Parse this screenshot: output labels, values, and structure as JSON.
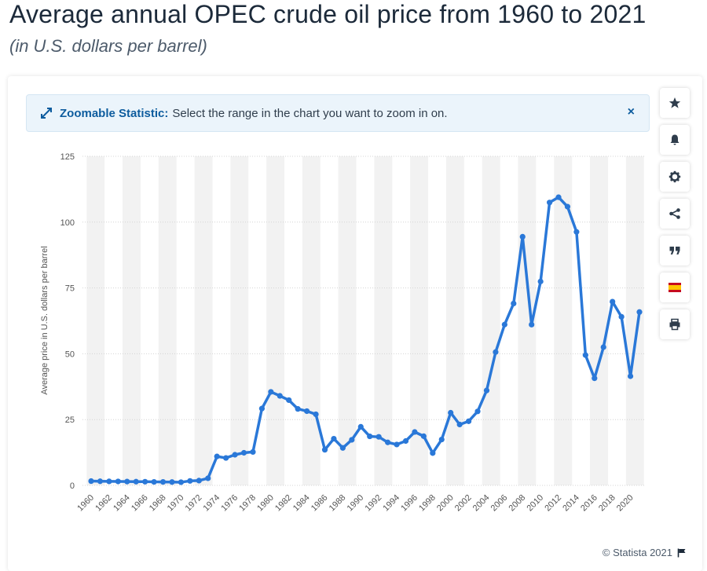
{
  "header": {
    "title": "Average annual OPEC crude oil price from 1960 to 2021",
    "subtitle": "(in U.S. dollars per barrel)"
  },
  "zoom_banner": {
    "label": "Zoomable Statistic:",
    "text": "Select the range in the chart you want to zoom in on.",
    "close_symbol": "×"
  },
  "sidebar": {
    "buttons": [
      "star-icon",
      "bell-icon",
      "gear-icon",
      "share-icon",
      "quote-icon",
      "spain-flag-icon",
      "print-icon"
    ]
  },
  "footer": {
    "copyright": "© Statista 2021"
  },
  "colors": {
    "line": "#2a78d8",
    "band": "#f2f2f2",
    "accent": "#0d5c9e"
  },
  "chart_data": {
    "type": "line",
    "title": "Average annual OPEC crude oil price from 1960 to 2021",
    "ylabel": "Average price in U.S. dollars per barrel",
    "xlabel": "",
    "ylim": [
      0,
      125
    ],
    "yticks": [
      0,
      25,
      50,
      75,
      100,
      125
    ],
    "xtick_labels": [
      "1960",
      "1962",
      "1964",
      "1966",
      "1968",
      "1970",
      "1972",
      "1974",
      "1976",
      "1978",
      "1980",
      "1982",
      "1984",
      "1986",
      "1988",
      "1990",
      "1992",
      "1994",
      "1996",
      "1998",
      "2000",
      "2002",
      "2004",
      "2006",
      "2008",
      "2010",
      "2012",
      "2014",
      "2016",
      "2018",
      "2020"
    ],
    "grid": true,
    "series": [
      {
        "name": "OPEC crude oil price",
        "x": [
          1960,
          1961,
          1962,
          1963,
          1964,
          1965,
          1966,
          1967,
          1968,
          1969,
          1970,
          1971,
          1972,
          1973,
          1974,
          1975,
          1976,
          1977,
          1978,
          1979,
          1980,
          1981,
          1982,
          1983,
          1984,
          1985,
          1986,
          1987,
          1988,
          1989,
          1990,
          1991,
          1992,
          1993,
          1994,
          1995,
          1996,
          1997,
          1998,
          1999,
          2000,
          2001,
          2002,
          2003,
          2004,
          2005,
          2006,
          2007,
          2008,
          2009,
          2010,
          2011,
          2012,
          2013,
          2014,
          2015,
          2016,
          2017,
          2018,
          2019,
          2020,
          2021
        ],
        "values": [
          1.63,
          1.57,
          1.52,
          1.5,
          1.45,
          1.42,
          1.4,
          1.33,
          1.32,
          1.27,
          1.21,
          1.7,
          1.82,
          2.7,
          11.0,
          10.43,
          11.63,
          12.38,
          12.7,
          29.19,
          35.52,
          34.0,
          32.38,
          29.04,
          28.2,
          27.01,
          13.53,
          17.73,
          14.24,
          17.31,
          22.26,
          18.62,
          18.44,
          16.33,
          15.53,
          16.86,
          20.29,
          18.68,
          12.28,
          17.44,
          27.6,
          23.12,
          24.36,
          28.1,
          36.05,
          50.64,
          61.08,
          69.08,
          94.45,
          61.06,
          77.45,
          107.46,
          109.45,
          105.87,
          96.29,
          49.49,
          40.68,
          52.51,
          69.78,
          64.04,
          41.47,
          65.85
        ]
      }
    ]
  }
}
